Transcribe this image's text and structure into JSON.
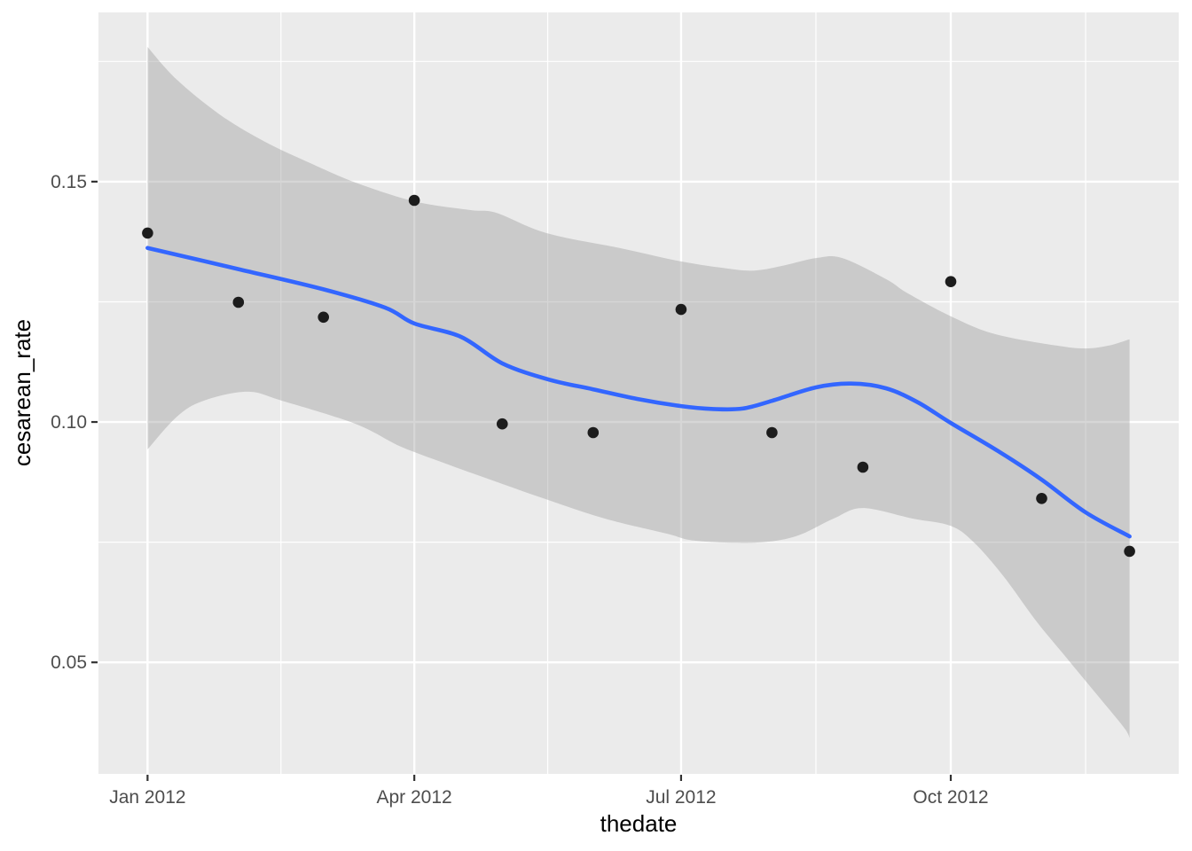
{
  "figure": {
    "background_color": "#ffffff",
    "panel_background_color": "#ebebeb",
    "grid_color": "#ffffff",
    "tick_mark_color": "#333333",
    "tick_label_color": "#4d4d4d",
    "axis_title_color": "#000000",
    "point_color": "#1c1c1c",
    "smooth_line_color": "#3366ff",
    "ribbon_fill": "#999999",
    "ribbon_opacity": 0.4
  },
  "chart_data": {
    "type": "scatter",
    "subtype": "scatter-with-loess-smooth-and-confidence-ribbon",
    "title": "",
    "xlabel": "thedate",
    "ylabel": "cesarean_rate",
    "x_axis": {
      "unit": "days-since-2012-01-01",
      "domain": [
        -16.75,
        351.75
      ],
      "major_tick_days": [
        0,
        91,
        182,
        274
      ],
      "major_tick_labels": [
        "Jan 2012",
        "Apr 2012",
        "Jul 2012",
        "Oct 2012"
      ],
      "minor_grid_days": [
        45.5,
        136.5,
        228,
        320
      ],
      "grid": true
    },
    "y_axis": {
      "domain": [
        0.0268,
        0.1852
      ],
      "major_ticks": [
        0.05,
        0.1,
        0.15
      ],
      "major_tick_labels": [
        "0.05",
        "0.10",
        "0.15"
      ],
      "minor_grid_values": [
        0.075,
        0.125,
        0.175
      ],
      "grid": true
    },
    "legend": "none",
    "points": [
      {
        "label": "Jan 2012",
        "day": 0,
        "value": 0.1393
      },
      {
        "label": "Feb 2012",
        "day": 31,
        "value": 0.1249
      },
      {
        "label": "Mar 2012",
        "day": 60,
        "value": 0.1218
      },
      {
        "label": "Apr 2012",
        "day": 91,
        "value": 0.1461
      },
      {
        "label": "May 2012",
        "day": 121,
        "value": 0.0996
      },
      {
        "label": "Jun 2012",
        "day": 152,
        "value": 0.0978
      },
      {
        "label": "Jul 2012",
        "day": 182,
        "value": 0.1234
      },
      {
        "label": "Aug 2012",
        "day": 213,
        "value": 0.0978
      },
      {
        "label": "Sep 2012",
        "day": 244,
        "value": 0.0906
      },
      {
        "label": "Oct 2012",
        "day": 274,
        "value": 0.1292
      },
      {
        "label": "Nov 2012",
        "day": 305,
        "value": 0.0841
      },
      {
        "label": "Dec 2012",
        "day": 335,
        "value": 0.0731
      }
    ],
    "smooth_line": [
      [
        0,
        0.1362
      ],
      [
        31,
        0.1318
      ],
      [
        60,
        0.1276
      ],
      [
        81,
        0.1238
      ],
      [
        91,
        0.1205
      ],
      [
        107,
        0.1177
      ],
      [
        121,
        0.1122
      ],
      [
        137,
        0.1088
      ],
      [
        152,
        0.1068
      ],
      [
        167,
        0.1048
      ],
      [
        182,
        0.1033
      ],
      [
        193,
        0.1027
      ],
      [
        203,
        0.1028
      ],
      [
        213,
        0.1044
      ],
      [
        228,
        0.1072
      ],
      [
        240,
        0.108
      ],
      [
        252,
        0.107
      ],
      [
        263,
        0.104
      ],
      [
        274,
        0.0998
      ],
      [
        290,
        0.094
      ],
      [
        305,
        0.088
      ],
      [
        320,
        0.0812
      ],
      [
        335,
        0.0762
      ]
    ],
    "ribbon_upper": [
      [
        0,
        0.178
      ],
      [
        10,
        0.1712
      ],
      [
        25,
        0.1638
      ],
      [
        40,
        0.1583
      ],
      [
        56,
        0.1537
      ],
      [
        71,
        0.1498
      ],
      [
        91,
        0.1459
      ],
      [
        110,
        0.1441
      ],
      [
        119,
        0.1435
      ],
      [
        136,
        0.1393
      ],
      [
        161,
        0.1362
      ],
      [
        182,
        0.1334
      ],
      [
        198,
        0.1319
      ],
      [
        207,
        0.1315
      ],
      [
        216,
        0.1324
      ],
      [
        228,
        0.1341
      ],
      [
        237,
        0.1341
      ],
      [
        252,
        0.1297
      ],
      [
        259,
        0.1269
      ],
      [
        274,
        0.122
      ],
      [
        289,
        0.1183
      ],
      [
        310,
        0.1159
      ],
      [
        320,
        0.1153
      ],
      [
        328,
        0.1159
      ],
      [
        335,
        0.1172
      ]
    ],
    "ribbon_lower": [
      [
        0,
        0.0943
      ],
      [
        10,
        0.1011
      ],
      [
        19,
        0.1044
      ],
      [
        34,
        0.1063
      ],
      [
        46,
        0.1044
      ],
      [
        71,
        0.0996
      ],
      [
        86,
        0.095
      ],
      [
        101,
        0.0915
      ],
      [
        116,
        0.0882
      ],
      [
        136,
        0.0839
      ],
      [
        156,
        0.0799
      ],
      [
        177,
        0.0768
      ],
      [
        187,
        0.0753
      ],
      [
        207,
        0.0749
      ],
      [
        221,
        0.0762
      ],
      [
        234,
        0.0799
      ],
      [
        244,
        0.0821
      ],
      [
        261,
        0.0799
      ],
      [
        274,
        0.0784
      ],
      [
        282,
        0.0749
      ],
      [
        292,
        0.0679
      ],
      [
        303,
        0.0587
      ],
      [
        313,
        0.0513
      ],
      [
        323,
        0.0439
      ],
      [
        333,
        0.0365
      ],
      [
        335,
        0.0343
      ]
    ]
  }
}
